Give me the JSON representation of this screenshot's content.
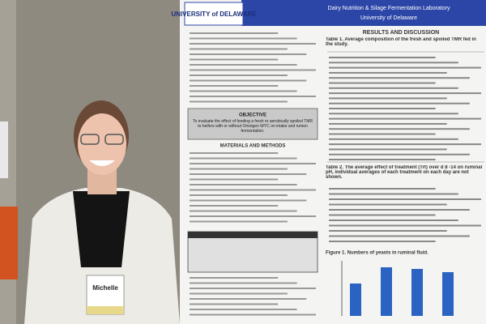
{
  "poster": {
    "university": "UNIVERSITY of DELAWARE",
    "lab": "Dairy Nutrition & Silage Fermentation Laboratory",
    "lab_sub": "University of Delaware",
    "results_heading": "RESULTS AND DISCUSSION",
    "table1_title": "Table 1. Average composition of the fresh and spoiled TMR fed in the study.",
    "table2_title": "Table 2. The average effect of treatment (Trt) over d 8 -14 on ruminal pH, individual averages of each treatment on each day are not shown.",
    "objective_heading": "OBJECTIVE",
    "objective_text": "To evaluate the effect of feeding a fresh or aerobically spoiled TMR to heifers with or without Omnigen WYC on intake and rumen fermentation.",
    "methods_heading": "MATERIALS AND METHODS",
    "figure_caption": "Figure 1. Numbers of yeasts in ruminal fluid."
  },
  "badge": {
    "name": "Michelle"
  }
}
